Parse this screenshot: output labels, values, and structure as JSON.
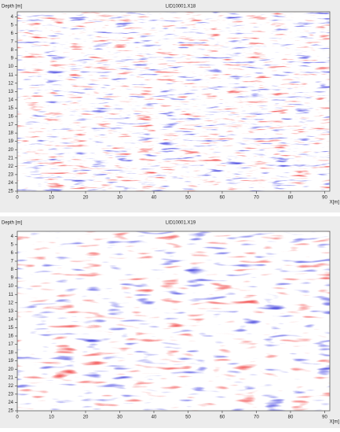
{
  "panels": [
    {
      "title": "LID10001.X18",
      "y_label": "Depth [m]",
      "x_label": "X[m]",
      "xlim": [
        0,
        91.5
      ],
      "ylim": [
        3.4,
        25
      ],
      "xticks": [
        0,
        10,
        20,
        30,
        40,
        50,
        60,
        70,
        80,
        90
      ],
      "yticks": [
        4,
        5,
        6,
        7,
        8,
        9,
        10,
        11,
        12,
        13,
        14,
        15,
        16,
        17,
        18,
        19,
        20,
        21,
        22,
        23,
        24,
        25
      ]
    },
    {
      "title": "LID10001.X19",
      "y_label": "Depth [m]",
      "x_label": "X[m]",
      "xlim": [
        0,
        91.5
      ],
      "ylim": [
        3.4,
        25
      ],
      "xticks": [
        0,
        10,
        20,
        30,
        40,
        50,
        60,
        70,
        80,
        90
      ],
      "yticks": [
        4,
        5,
        6,
        7,
        8,
        9,
        10,
        11,
        12,
        13,
        14,
        15,
        16,
        17,
        18,
        19,
        20,
        21,
        22,
        23,
        24,
        25
      ]
    }
  ]
}
